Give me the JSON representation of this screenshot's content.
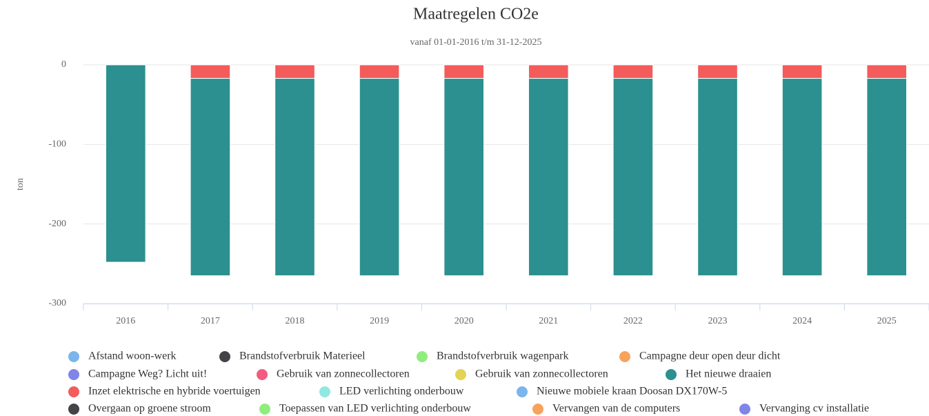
{
  "chart_data": {
    "type": "bar",
    "stacked": true,
    "title": "Maatregelen CO2e",
    "subtitle": "vanaf 01-01-2016 t/m 31-12-2025",
    "y_label": "ton",
    "categories": [
      "2016",
      "2017",
      "2018",
      "2019",
      "2020",
      "2021",
      "2022",
      "2023",
      "2024",
      "2025"
    ],
    "ylim": [
      -300,
      0
    ],
    "yticks": [
      0,
      -100,
      -200,
      -300
    ],
    "grid": true,
    "legend": "bottom",
    "series": [
      {
        "name": "Afstand woon-werk",
        "color": "#7cb5ec",
        "values": [
          0,
          0,
          0,
          0,
          0,
          0,
          0,
          0,
          0,
          0
        ]
      },
      {
        "name": "Brandstofverbruik Materieel",
        "color": "#434348",
        "values": [
          0,
          0,
          0,
          0,
          0,
          0,
          0,
          0,
          0,
          0
        ]
      },
      {
        "name": "Brandstofverbruik wagenpark",
        "color": "#90ed7d",
        "values": [
          0,
          0,
          0,
          0,
          0,
          0,
          0,
          0,
          0,
          0
        ]
      },
      {
        "name": "Campagne deur open deur dicht",
        "color": "#f7a35c",
        "values": [
          0,
          0,
          0,
          0,
          0,
          0,
          0,
          0,
          0,
          0
        ]
      },
      {
        "name": "Campagne Weg? Licht uit!",
        "color": "#8085e9",
        "values": [
          0,
          0,
          0,
          0,
          0,
          0,
          0,
          0,
          0,
          0
        ]
      },
      {
        "name": "Gebruik van zonnecollectoren",
        "color": "#f15c80",
        "values": [
          0,
          0,
          0,
          0,
          0,
          0,
          0,
          0,
          0,
          0
        ]
      },
      {
        "name": "Gebruik van zonnecollectoren",
        "color": "#e4d354",
        "values": [
          0,
          0,
          0,
          0,
          0,
          0,
          0,
          0,
          0,
          0
        ]
      },
      {
        "name": "Het nieuwe draaien",
        "color": "#2b908f",
        "values": [
          -248,
          -248,
          -248,
          -248,
          -248,
          -248,
          -248,
          -248,
          -248,
          -248
        ]
      },
      {
        "name": "Inzet elektrische en hybride voertuigen",
        "color": "#f45b5b",
        "values": [
          0,
          -17,
          -17,
          -17,
          -17,
          -17,
          -17,
          -17,
          -17,
          -17
        ]
      },
      {
        "name": "LED verlichting onderbouw",
        "color": "#91e8e1",
        "values": [
          0,
          0,
          0,
          0,
          0,
          0,
          0,
          0,
          0,
          0
        ]
      },
      {
        "name": "Nieuwe mobiele kraan Doosan DX170W-5",
        "color": "#7cb5ec",
        "values": [
          0,
          0,
          0,
          0,
          0,
          0,
          0,
          0,
          0,
          0
        ]
      },
      {
        "name": "Overgaan op groene stroom",
        "color": "#434348",
        "values": [
          0,
          0,
          0,
          0,
          0,
          0,
          0,
          0,
          0,
          0
        ]
      },
      {
        "name": "Toepassen van LED verlichting onderbouw",
        "color": "#90ed7d",
        "values": [
          0,
          0,
          0,
          0,
          0,
          0,
          0,
          0,
          0,
          0
        ]
      },
      {
        "name": "Vervangen van de computers",
        "color": "#f7a35c",
        "values": [
          0,
          0,
          0,
          0,
          0,
          0,
          0,
          0,
          0,
          0
        ]
      },
      {
        "name": "Vervanging cv installatie",
        "color": "#8085e9",
        "values": [
          0,
          0,
          0,
          0,
          0,
          0,
          0,
          0,
          0,
          0
        ]
      }
    ]
  }
}
